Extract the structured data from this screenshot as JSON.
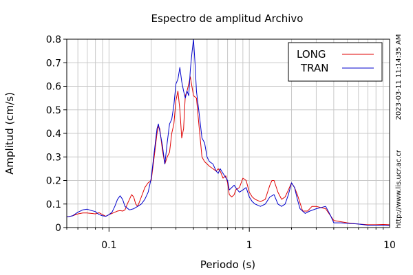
{
  "chart_data": {
    "type": "line",
    "title": "Espectro de amplitud Archivo",
    "xlabel": "Periodo (s)",
    "ylabel": "Amplitud (cm/s)",
    "x_scale": "log",
    "xlim": [
      0.05,
      10
    ],
    "ylim": [
      0,
      0.8
    ],
    "grid": true,
    "legend_position": "top-right",
    "x_ticks": [
      {
        "value": 0.1,
        "label": "0.1"
      },
      {
        "value": 1,
        "label": "1"
      },
      {
        "value": 10,
        "label": "10"
      }
    ],
    "y_ticks": [
      {
        "value": 0,
        "label": "0"
      },
      {
        "value": 0.1,
        "label": "0.1"
      },
      {
        "value": 0.2,
        "label": "0.2"
      },
      {
        "value": 0.3,
        "label": "0.3"
      },
      {
        "value": 0.4,
        "label": "0.4"
      },
      {
        "value": 0.5,
        "label": "0.5"
      },
      {
        "value": 0.6,
        "label": "0.6"
      },
      {
        "value": 0.7,
        "label": "0.7"
      },
      {
        "value": 0.8,
        "label": "0.8"
      }
    ],
    "series": [
      {
        "name": "LONG",
        "color": "#e00000",
        "points": [
          [
            0.05,
            0.045
          ],
          [
            0.055,
            0.05
          ],
          [
            0.06,
            0.058
          ],
          [
            0.065,
            0.062
          ],
          [
            0.07,
            0.062
          ],
          [
            0.075,
            0.06
          ],
          [
            0.08,
            0.058
          ],
          [
            0.085,
            0.063
          ],
          [
            0.09,
            0.055
          ],
          [
            0.095,
            0.048
          ],
          [
            0.1,
            0.055
          ],
          [
            0.105,
            0.06
          ],
          [
            0.11,
            0.065
          ],
          [
            0.115,
            0.07
          ],
          [
            0.12,
            0.072
          ],
          [
            0.125,
            0.07
          ],
          [
            0.13,
            0.075
          ],
          [
            0.135,
            0.1
          ],
          [
            0.14,
            0.12
          ],
          [
            0.145,
            0.14
          ],
          [
            0.15,
            0.13
          ],
          [
            0.155,
            0.1
          ],
          [
            0.16,
            0.09
          ],
          [
            0.165,
            0.11
          ],
          [
            0.17,
            0.13
          ],
          [
            0.175,
            0.15
          ],
          [
            0.18,
            0.17
          ],
          [
            0.19,
            0.19
          ],
          [
            0.2,
            0.2
          ],
          [
            0.21,
            0.3
          ],
          [
            0.22,
            0.4
          ],
          [
            0.225,
            0.43
          ],
          [
            0.23,
            0.42
          ],
          [
            0.24,
            0.33
          ],
          [
            0.25,
            0.27
          ],
          [
            0.26,
            0.3
          ],
          [
            0.27,
            0.32
          ],
          [
            0.28,
            0.4
          ],
          [
            0.29,
            0.44
          ],
          [
            0.3,
            0.54
          ],
          [
            0.31,
            0.58
          ],
          [
            0.32,
            0.5
          ],
          [
            0.33,
            0.38
          ],
          [
            0.34,
            0.42
          ],
          [
            0.35,
            0.56
          ],
          [
            0.36,
            0.58
          ],
          [
            0.37,
            0.61
          ],
          [
            0.38,
            0.64
          ],
          [
            0.39,
            0.6
          ],
          [
            0.4,
            0.56
          ],
          [
            0.42,
            0.55
          ],
          [
            0.44,
            0.42
          ],
          [
            0.46,
            0.3
          ],
          [
            0.48,
            0.28
          ],
          [
            0.5,
            0.27
          ],
          [
            0.52,
            0.26
          ],
          [
            0.55,
            0.25
          ],
          [
            0.58,
            0.24
          ],
          [
            0.6,
            0.25
          ],
          [
            0.62,
            0.24
          ],
          [
            0.65,
            0.21
          ],
          [
            0.68,
            0.22
          ],
          [
            0.7,
            0.19
          ],
          [
            0.72,
            0.14
          ],
          [
            0.75,
            0.13
          ],
          [
            0.78,
            0.14
          ],
          [
            0.8,
            0.16
          ],
          [
            0.85,
            0.17
          ],
          [
            0.9,
            0.21
          ],
          [
            0.95,
            0.2
          ],
          [
            1.0,
            0.15
          ],
          [
            1.05,
            0.13
          ],
          [
            1.1,
            0.12
          ],
          [
            1.2,
            0.11
          ],
          [
            1.3,
            0.12
          ],
          [
            1.4,
            0.18
          ],
          [
            1.45,
            0.2
          ],
          [
            1.5,
            0.2
          ],
          [
            1.6,
            0.15
          ],
          [
            1.7,
            0.12
          ],
          [
            1.8,
            0.13
          ],
          [
            1.9,
            0.16
          ],
          [
            2.0,
            0.19
          ],
          [
            2.1,
            0.17
          ],
          [
            2.2,
            0.14
          ],
          [
            2.4,
            0.07
          ],
          [
            2.6,
            0.07
          ],
          [
            2.8,
            0.09
          ],
          [
            3.0,
            0.09
          ],
          [
            3.5,
            0.08
          ],
          [
            4.0,
            0.03
          ],
          [
            5.0,
            0.02
          ],
          [
            6.0,
            0.015
          ],
          [
            7.0,
            0.012
          ],
          [
            8.0,
            0.012
          ],
          [
            9.0,
            0.013
          ],
          [
            10.0,
            0.012
          ]
        ]
      },
      {
        "name": "TRAN",
        "color": "#0000cc",
        "points": [
          [
            0.05,
            0.045
          ],
          [
            0.055,
            0.05
          ],
          [
            0.06,
            0.065
          ],
          [
            0.065,
            0.075
          ],
          [
            0.07,
            0.078
          ],
          [
            0.075,
            0.072
          ],
          [
            0.08,
            0.068
          ],
          [
            0.085,
            0.055
          ],
          [
            0.09,
            0.05
          ],
          [
            0.095,
            0.048
          ],
          [
            0.1,
            0.055
          ],
          [
            0.105,
            0.065
          ],
          [
            0.11,
            0.09
          ],
          [
            0.115,
            0.12
          ],
          [
            0.12,
            0.135
          ],
          [
            0.125,
            0.12
          ],
          [
            0.13,
            0.09
          ],
          [
            0.14,
            0.075
          ],
          [
            0.15,
            0.08
          ],
          [
            0.16,
            0.09
          ],
          [
            0.17,
            0.1
          ],
          [
            0.18,
            0.12
          ],
          [
            0.19,
            0.15
          ],
          [
            0.2,
            0.21
          ],
          [
            0.21,
            0.32
          ],
          [
            0.22,
            0.42
          ],
          [
            0.225,
            0.44
          ],
          [
            0.23,
            0.41
          ],
          [
            0.24,
            0.35
          ],
          [
            0.25,
            0.27
          ],
          [
            0.26,
            0.36
          ],
          [
            0.27,
            0.44
          ],
          [
            0.28,
            0.46
          ],
          [
            0.29,
            0.52
          ],
          [
            0.3,
            0.61
          ],
          [
            0.31,
            0.63
          ],
          [
            0.32,
            0.68
          ],
          [
            0.33,
            0.62
          ],
          [
            0.34,
            0.58
          ],
          [
            0.35,
            0.55
          ],
          [
            0.36,
            0.58
          ],
          [
            0.37,
            0.56
          ],
          [
            0.38,
            0.67
          ],
          [
            0.39,
            0.74
          ],
          [
            0.4,
            0.8
          ],
          [
            0.41,
            0.7
          ],
          [
            0.42,
            0.58
          ],
          [
            0.44,
            0.48
          ],
          [
            0.46,
            0.38
          ],
          [
            0.48,
            0.36
          ],
          [
            0.5,
            0.3
          ],
          [
            0.52,
            0.28
          ],
          [
            0.55,
            0.27
          ],
          [
            0.58,
            0.24
          ],
          [
            0.6,
            0.23
          ],
          [
            0.62,
            0.25
          ],
          [
            0.65,
            0.23
          ],
          [
            0.7,
            0.2
          ],
          [
            0.72,
            0.16
          ],
          [
            0.75,
            0.17
          ],
          [
            0.78,
            0.18
          ],
          [
            0.8,
            0.17
          ],
          [
            0.85,
            0.15
          ],
          [
            0.9,
            0.16
          ],
          [
            0.95,
            0.17
          ],
          [
            1.0,
            0.13
          ],
          [
            1.05,
            0.11
          ],
          [
            1.1,
            0.1
          ],
          [
            1.2,
            0.09
          ],
          [
            1.3,
            0.1
          ],
          [
            1.4,
            0.13
          ],
          [
            1.5,
            0.14
          ],
          [
            1.6,
            0.1
          ],
          [
            1.7,
            0.09
          ],
          [
            1.8,
            0.1
          ],
          [
            1.9,
            0.14
          ],
          [
            2.0,
            0.19
          ],
          [
            2.1,
            0.17
          ],
          [
            2.2,
            0.12
          ],
          [
            2.3,
            0.08
          ],
          [
            2.5,
            0.06
          ],
          [
            2.7,
            0.07
          ],
          [
            3.0,
            0.08
          ],
          [
            3.5,
            0.09
          ],
          [
            3.8,
            0.05
          ],
          [
            4.0,
            0.02
          ],
          [
            4.5,
            0.02
          ],
          [
            5.0,
            0.018
          ],
          [
            6.0,
            0.015
          ],
          [
            7.0,
            0.01
          ],
          [
            8.0,
            0.01
          ],
          [
            9.0,
            0.01
          ],
          [
            10.0,
            0.008
          ]
        ]
      }
    ]
  },
  "side_text": {
    "timestamp": "2023-03-11 11:14:35 AM",
    "url": "http://www.lis.ucr.ac.cr"
  }
}
